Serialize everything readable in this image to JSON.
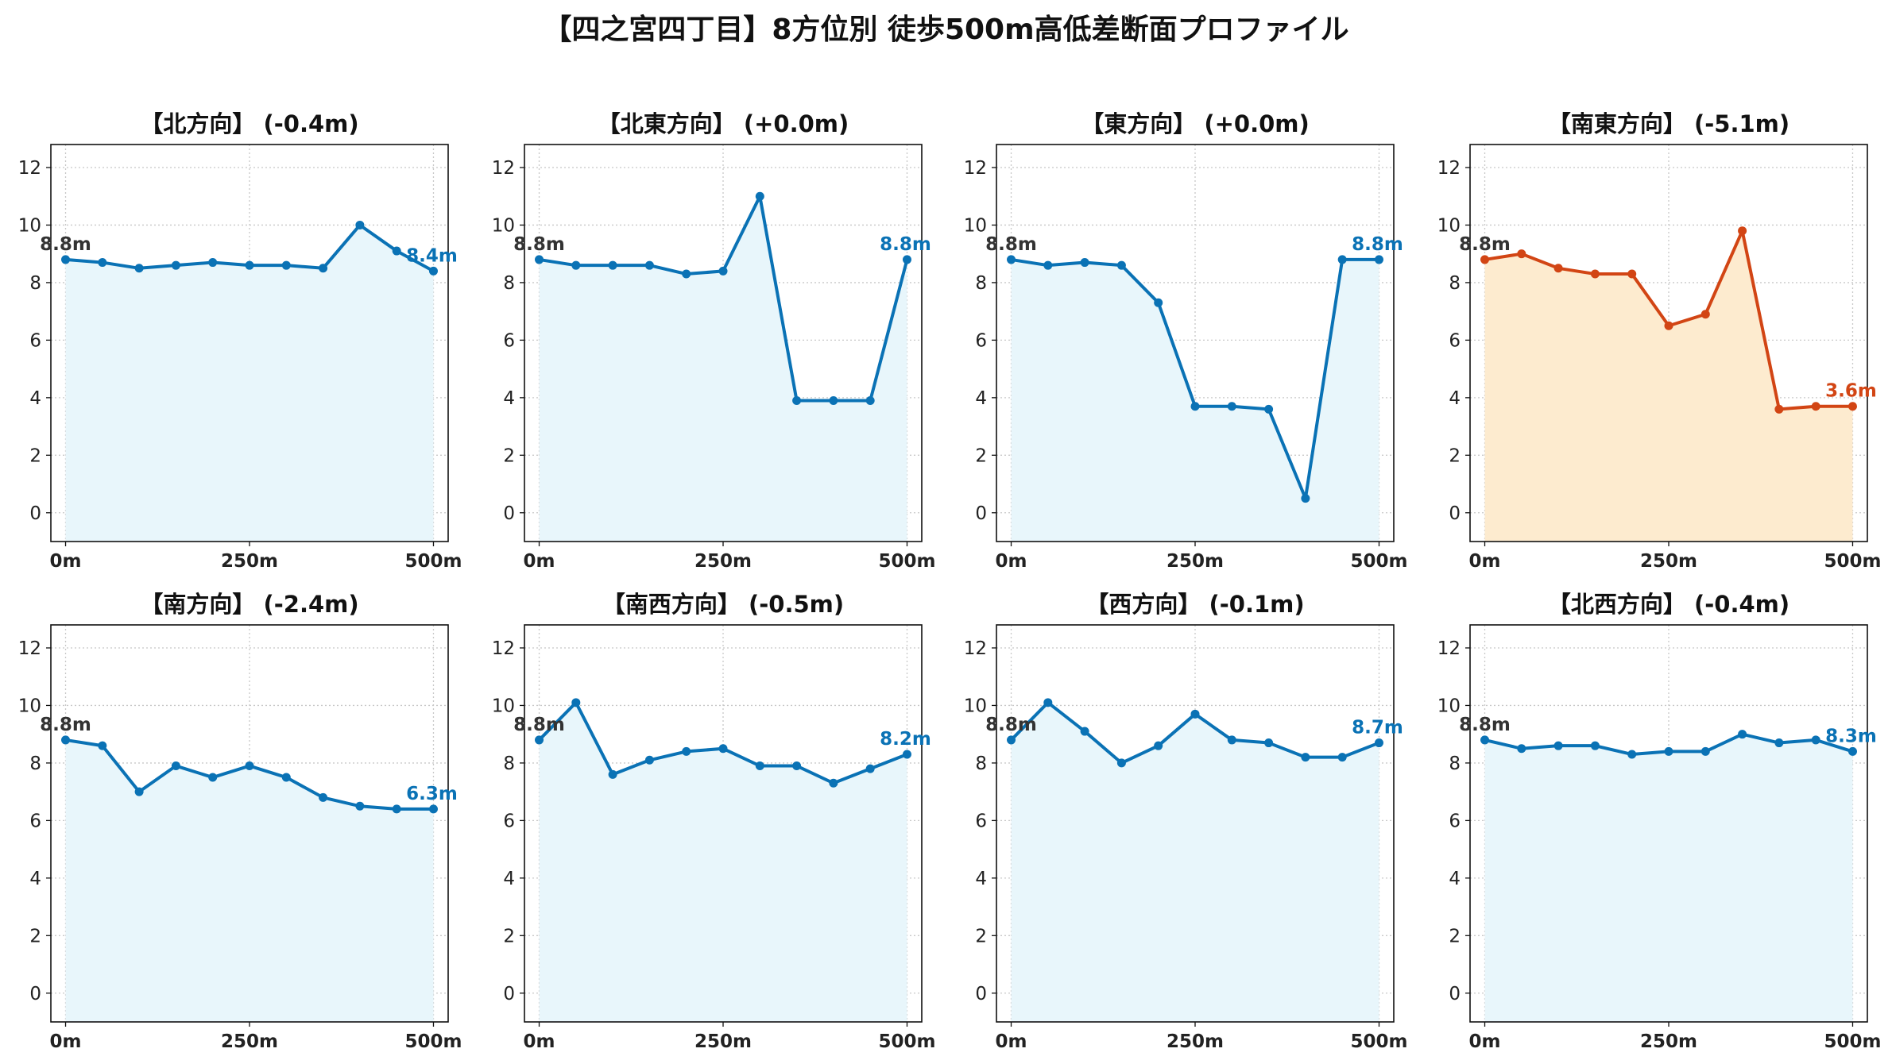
{
  "page_title": "【四之宮四丁目】8方位別 徒歩500m高低差断面プロファイル",
  "chart_data": [
    {
      "type": "area",
      "title": "【北方向】 (-0.4m)",
      "x": [
        0,
        50,
        100,
        150,
        200,
        250,
        300,
        350,
        400,
        450,
        500
      ],
      "values": [
        8.8,
        8.7,
        8.5,
        8.6,
        8.7,
        8.6,
        8.6,
        8.5,
        10.0,
        9.1,
        8.4
      ],
      "start_label": "8.8m",
      "end_label": "8.4m",
      "line_color": "#0A72B5",
      "fill_color": "#E8F6FB",
      "xticks": [
        "0m",
        "250m",
        "500m"
      ],
      "yticks": [
        "0",
        "2",
        "4",
        "6",
        "8",
        "10",
        "12"
      ],
      "ylim": [
        -1,
        12.8
      ],
      "xlim": [
        -20,
        520
      ],
      "grid": true
    },
    {
      "type": "area",
      "title": "【北東方向】 (+0.0m)",
      "x": [
        0,
        50,
        100,
        150,
        200,
        250,
        300,
        350,
        400,
        450,
        500
      ],
      "values": [
        8.8,
        8.6,
        8.6,
        8.6,
        8.3,
        8.4,
        11.0,
        3.9,
        3.9,
        3.9,
        8.8
      ],
      "start_label": "8.8m",
      "end_label": "8.8m",
      "line_color": "#0A72B5",
      "fill_color": "#E8F6FB",
      "xticks": [
        "0m",
        "250m",
        "500m"
      ],
      "yticks": [
        "0",
        "2",
        "4",
        "6",
        "8",
        "10",
        "12"
      ],
      "ylim": [
        -1,
        12.8
      ],
      "xlim": [
        -20,
        520
      ],
      "grid": true
    },
    {
      "type": "area",
      "title": "【東方向】 (+0.0m)",
      "x": [
        0,
        50,
        100,
        150,
        200,
        250,
        300,
        350,
        400,
        450,
        500
      ],
      "values": [
        8.8,
        8.6,
        8.7,
        8.6,
        7.3,
        3.7,
        3.7,
        3.6,
        0.5,
        8.8,
        8.8
      ],
      "start_label": "8.8m",
      "end_label": "8.8m",
      "line_color": "#0A72B5",
      "fill_color": "#E8F6FB",
      "xticks": [
        "0m",
        "250m",
        "500m"
      ],
      "yticks": [
        "0",
        "2",
        "4",
        "6",
        "8",
        "10",
        "12"
      ],
      "ylim": [
        -1,
        12.8
      ],
      "xlim": [
        -20,
        520
      ],
      "grid": true
    },
    {
      "type": "area",
      "title": "【南東方向】 (-5.1m)",
      "x": [
        0,
        50,
        100,
        150,
        200,
        250,
        300,
        350,
        400,
        450,
        500
      ],
      "values": [
        8.8,
        9.0,
        8.5,
        8.3,
        8.3,
        6.5,
        6.9,
        9.8,
        3.6,
        3.7,
        3.7
      ],
      "start_label": "8.8m",
      "end_label": "3.6m",
      "line_color": "#D24514",
      "fill_color": "#FDEBCF",
      "xticks": [
        "0m",
        "250m",
        "500m"
      ],
      "yticks": [
        "0",
        "2",
        "4",
        "6",
        "8",
        "10",
        "12"
      ],
      "ylim": [
        -1,
        12.8
      ],
      "xlim": [
        -20,
        520
      ],
      "grid": true
    },
    {
      "type": "area",
      "title": "【南方向】 (-2.4m)",
      "x": [
        0,
        50,
        100,
        150,
        200,
        250,
        300,
        350,
        400,
        450,
        500
      ],
      "values": [
        8.8,
        8.6,
        7.0,
        7.9,
        7.5,
        7.9,
        7.5,
        6.8,
        6.5,
        6.4,
        6.4
      ],
      "start_label": "8.8m",
      "end_label": "6.3m",
      "line_color": "#0A72B5",
      "fill_color": "#E8F6FB",
      "xticks": [
        "0m",
        "250m",
        "500m"
      ],
      "yticks": [
        "0",
        "2",
        "4",
        "6",
        "8",
        "10",
        "12"
      ],
      "ylim": [
        -1,
        12.8
      ],
      "xlim": [
        -20,
        520
      ],
      "grid": true
    },
    {
      "type": "area",
      "title": "【南西方向】 (-0.5m)",
      "x": [
        0,
        50,
        100,
        150,
        200,
        250,
        300,
        350,
        400,
        450,
        500
      ],
      "values": [
        8.8,
        10.1,
        7.6,
        8.1,
        8.4,
        8.5,
        7.9,
        7.9,
        7.3,
        7.8,
        8.3
      ],
      "start_label": "8.8m",
      "end_label": "8.2m",
      "line_color": "#0A72B5",
      "fill_color": "#E8F6FB",
      "xticks": [
        "0m",
        "250m",
        "500m"
      ],
      "yticks": [
        "0",
        "2",
        "4",
        "6",
        "8",
        "10",
        "12"
      ],
      "ylim": [
        -1,
        12.8
      ],
      "xlim": [
        -20,
        520
      ],
      "grid": true
    },
    {
      "type": "area",
      "title": "【西方向】 (-0.1m)",
      "x": [
        0,
        50,
        100,
        150,
        200,
        250,
        300,
        350,
        400,
        450,
        500
      ],
      "values": [
        8.8,
        10.1,
        9.1,
        8.0,
        8.6,
        9.7,
        8.8,
        8.7,
        8.2,
        8.2,
        8.7
      ],
      "start_label": "8.8m",
      "end_label": "8.7m",
      "line_color": "#0A72B5",
      "fill_color": "#E8F6FB",
      "xticks": [
        "0m",
        "250m",
        "500m"
      ],
      "yticks": [
        "0",
        "2",
        "4",
        "6",
        "8",
        "10",
        "12"
      ],
      "ylim": [
        -1,
        12.8
      ],
      "xlim": [
        -20,
        520
      ],
      "grid": true
    },
    {
      "type": "area",
      "title": "【北西方向】 (-0.4m)",
      "x": [
        0,
        50,
        100,
        150,
        200,
        250,
        300,
        350,
        400,
        450,
        500
      ],
      "values": [
        8.8,
        8.5,
        8.6,
        8.6,
        8.3,
        8.4,
        8.4,
        9.0,
        8.7,
        8.8,
        8.4
      ],
      "start_label": "8.8m",
      "end_label": "8.3m",
      "line_color": "#0A72B5",
      "fill_color": "#E8F6FB",
      "xticks": [
        "0m",
        "250m",
        "500m"
      ],
      "yticks": [
        "0",
        "2",
        "4",
        "6",
        "8",
        "10",
        "12"
      ],
      "ylim": [
        -1,
        12.8
      ],
      "xlim": [
        -20,
        520
      ],
      "grid": true
    }
  ]
}
